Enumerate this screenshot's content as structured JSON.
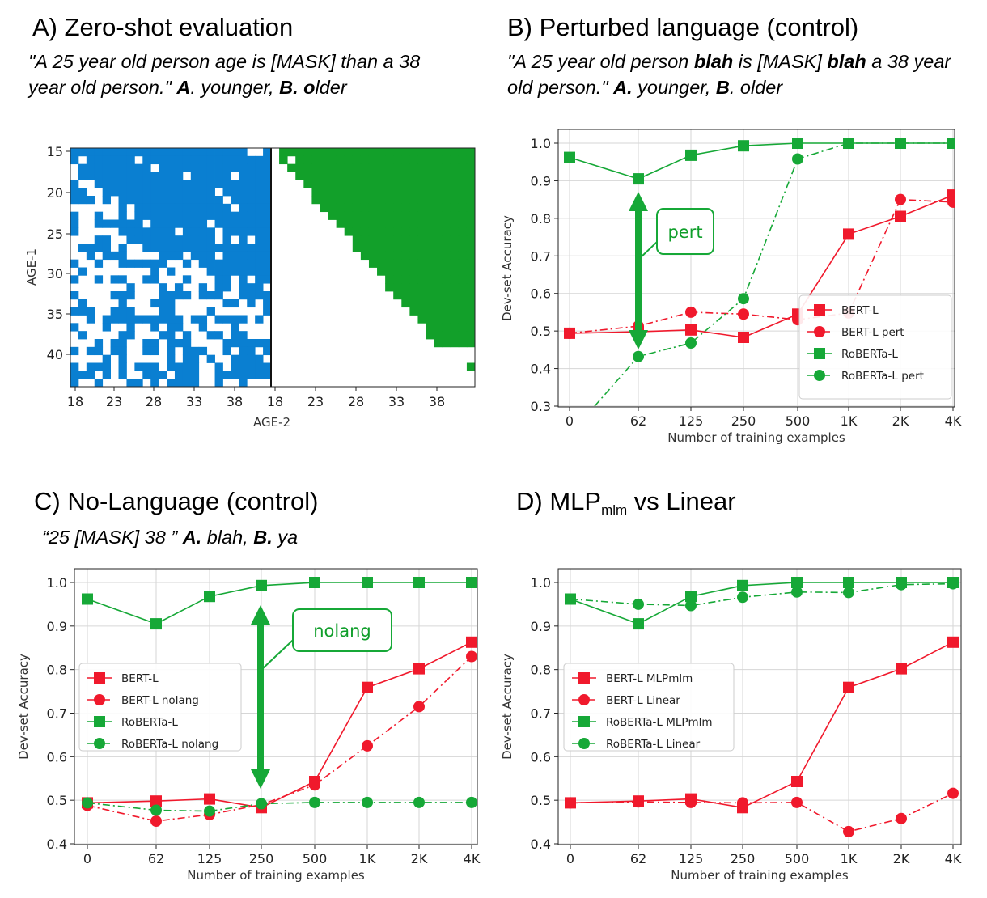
{
  "panels": {
    "A": {
      "title": "A) Zero-shot evaluation",
      "subtitle_parts": [
        "\"A 25 year old person age is [MASK] than a 38 year old person.\" ",
        "A",
        ". younger, ",
        "B. o",
        "lder"
      ]
    },
    "B": {
      "title": "B) Perturbed language (control)",
      "subtitle_parts": [
        "\"A 25 year old person ",
        "blah",
        " is [MASK] ",
        "blah",
        " a 38 year old person.\" ",
        "A.",
        " younger, ",
        "B",
        ". older"
      ]
    },
    "C": {
      "title": "C) No-Language (control)",
      "subtitle_parts": [
        "“25 [MASK] 38 ”  ",
        "A.",
        " blah, ",
        "B.",
        " ya"
      ]
    },
    "D": {
      "title_main": "D) MLP",
      "title_sub": "mlm",
      "title_rest": " vs Linear"
    }
  },
  "chart_data": [
    {
      "id": "A",
      "type": "heatmap",
      "xlabel": "AGE-2",
      "ylabel": "AGE-1",
      "x_ticks": [
        "18",
        "23",
        "28",
        "33",
        "38",
        "18",
        "23",
        "28",
        "33",
        "38"
      ],
      "y_ticks": [
        "15",
        "20",
        "25",
        "30",
        "35",
        "40"
      ],
      "colors": {
        "younger": "#0a7fd1",
        "older": "#12a02a"
      },
      "description_cells": {
        "left_block": "younger-predictions (blue) for AGE-1 vs AGE-2 ages 18-44",
        "right_block": "older-predictions (green) upper-right triangle"
      }
    },
    {
      "id": "B",
      "type": "line",
      "xlabel": "Number of training examples",
      "ylabel": "Dev-set Accuracy",
      "categories": [
        "0",
        "62",
        "125",
        "250",
        "500",
        "1K",
        "2K",
        "4K"
      ],
      "ylim": [
        0.3,
        1.0
      ],
      "yticks": [
        "0.3",
        "0.4",
        "0.5",
        "0.6",
        "0.7",
        "0.8",
        "0.9",
        "1.0"
      ],
      "legend_position": "lower right",
      "callout": "pert",
      "series": [
        {
          "name": "BERT-L",
          "color": "#f0192c",
          "marker": "square",
          "dash": "solid",
          "values": [
            0.494,
            0.498,
            0.503,
            0.483,
            0.545,
            0.758,
            0.805,
            0.862
          ]
        },
        {
          "name": "BERT-L pert",
          "color": "#f0192c",
          "marker": "circle",
          "dash": "dashdot",
          "values": [
            0.494,
            0.513,
            0.55,
            0.545,
            0.53,
            0.548,
            0.85,
            0.843
          ]
        },
        {
          "name": "RoBERTa-L",
          "color": "#16a837",
          "marker": "square",
          "dash": "solid",
          "values": [
            0.962,
            0.905,
            0.968,
            0.993,
            1.0,
            1.0,
            1.0,
            1.0
          ]
        },
        {
          "name": "RoBERTa-L pert",
          "color": "#16a837",
          "marker": "circle",
          "dash": "dashdot",
          "values": [
            0.15,
            0.432,
            0.468,
            0.586,
            0.958,
            1.0,
            1.0,
            1.0
          ]
        }
      ]
    },
    {
      "id": "C",
      "type": "line",
      "xlabel": "Number of training examples",
      "ylabel": "Dev-set Accuracy",
      "categories": [
        "0",
        "62",
        "125",
        "250",
        "500",
        "1K",
        "2K",
        "4K"
      ],
      "ylim": [
        0.4,
        1.0
      ],
      "yticks": [
        "0.4",
        "0.5",
        "0.6",
        "0.7",
        "0.8",
        "0.9",
        "1.0"
      ],
      "legend_position": "center left",
      "callout": "nolang",
      "series": [
        {
          "name": "BERT-L",
          "color": "#f0192c",
          "marker": "square",
          "dash": "solid",
          "values": [
            0.494,
            0.498,
            0.503,
            0.483,
            0.543,
            0.759,
            0.802,
            0.863
          ]
        },
        {
          "name": "BERT-L nolang",
          "color": "#f0192c",
          "marker": "circle",
          "dash": "dashdot",
          "values": [
            0.488,
            0.452,
            0.467,
            0.49,
            0.535,
            0.625,
            0.715,
            0.83
          ]
        },
        {
          "name": "RoBERTa-L",
          "color": "#16a837",
          "marker": "square",
          "dash": "solid",
          "values": [
            0.962,
            0.905,
            0.968,
            0.993,
            1.0,
            1.0,
            1.0,
            1.0
          ]
        },
        {
          "name": "RoBERTa-L nolang",
          "color": "#16a837",
          "marker": "circle",
          "dash": "dashdot",
          "values": [
            0.494,
            0.477,
            0.475,
            0.492,
            0.495,
            0.495,
            0.495,
            0.495
          ]
        }
      ]
    },
    {
      "id": "D",
      "type": "line",
      "xlabel": "Number of training examples",
      "ylabel": "Dev-set Accuracy",
      "categories": [
        "0",
        "62",
        "125",
        "250",
        "500",
        "1K",
        "2K",
        "4K"
      ],
      "ylim": [
        0.4,
        1.0
      ],
      "yticks": [
        "0.4",
        "0.5",
        "0.6",
        "0.7",
        "0.8",
        "0.9",
        "1.0"
      ],
      "legend_position": "center left",
      "series": [
        {
          "name": "BERT-L MLPmlm",
          "color": "#f0192c",
          "marker": "square",
          "dash": "solid",
          "values": [
            0.494,
            0.498,
            0.503,
            0.483,
            0.543,
            0.759,
            0.802,
            0.863
          ]
        },
        {
          "name": "BERT-L Linear",
          "color": "#f0192c",
          "marker": "circle",
          "dash": "dashdot",
          "values": [
            0.494,
            0.496,
            0.495,
            0.494,
            0.495,
            0.428,
            0.458,
            0.516
          ]
        },
        {
          "name": "RoBERTa-L MLPmlm",
          "color": "#16a837",
          "marker": "square",
          "dash": "solid",
          "values": [
            0.962,
            0.905,
            0.968,
            0.993,
            1.0,
            1.0,
            1.0,
            1.0
          ]
        },
        {
          "name": "RoBERTa-L Linear",
          "color": "#16a837",
          "marker": "circle",
          "dash": "dashdot",
          "values": [
            0.962,
            0.95,
            0.947,
            0.966,
            0.978,
            0.977,
            0.995,
            0.997
          ]
        }
      ]
    }
  ]
}
